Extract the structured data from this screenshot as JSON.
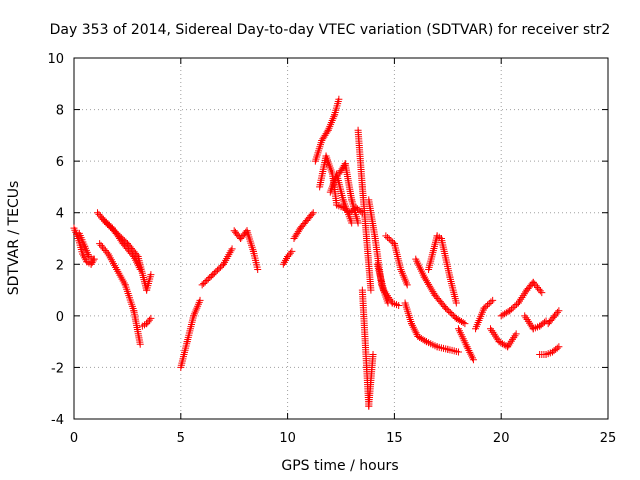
{
  "chart_data": {
    "type": "scatter",
    "title": "Day 353 of 2014, Sidereal Day-to-day VTEC variation (SDTVAR) for receiver str2",
    "xlabel": "GPS time / hours",
    "ylabel": "SDTVAR / TECUs",
    "xlim": [
      0,
      25
    ],
    "ylim": [
      -4,
      10
    ],
    "xticks": [
      0,
      5,
      10,
      15,
      20,
      25
    ],
    "yticks": [
      -4,
      -2,
      0,
      2,
      4,
      6,
      8,
      10
    ],
    "grid": true,
    "marker": "+",
    "marker_color": "#ff0000",
    "segments": [
      {
        "x": [
          0.0,
          0.2,
          0.4,
          0.6,
          0.8,
          0.95
        ],
        "y": [
          3.4,
          3.0,
          2.4,
          2.1,
          2.0,
          2.2
        ]
      },
      {
        "x": [
          0.25,
          0.5,
          0.7,
          0.9
        ],
        "y": [
          3.2,
          2.7,
          2.3,
          2.2
        ]
      },
      {
        "x": [
          1.1,
          1.5,
          2.0,
          2.5,
          3.0,
          3.4,
          3.6
        ],
        "y": [
          4.0,
          3.6,
          3.2,
          2.8,
          2.3,
          1.0,
          1.6
        ]
      },
      {
        "x": [
          1.2,
          1.6,
          2.0,
          2.4,
          2.8,
          3.1
        ],
        "y": [
          2.8,
          2.4,
          1.8,
          1.2,
          0.2,
          -1.1
        ]
      },
      {
        "x": [
          1.3,
          1.8,
          2.3,
          2.8,
          3.1
        ],
        "y": [
          3.8,
          3.4,
          2.8,
          2.3,
          1.8
        ]
      },
      {
        "x": [
          3.2,
          3.4,
          3.6
        ],
        "y": [
          -0.4,
          -0.3,
          -0.1
        ]
      },
      {
        "x": [
          5.0,
          5.3,
          5.6,
          5.9
        ],
        "y": [
          -2.0,
          -1.0,
          0.0,
          0.6
        ]
      },
      {
        "x": [
          6.0,
          6.5,
          7.0,
          7.4
        ],
        "y": [
          1.2,
          1.6,
          2.0,
          2.6
        ]
      },
      {
        "x": [
          7.5,
          7.8,
          8.1,
          8.4,
          8.6
        ],
        "y": [
          3.3,
          3.0,
          3.3,
          2.5,
          1.8
        ]
      },
      {
        "x": [
          9.8,
          10.0,
          10.2
        ],
        "y": [
          2.0,
          2.3,
          2.5
        ]
      },
      {
        "x": [
          10.3,
          10.6,
          10.9,
          11.2
        ],
        "y": [
          3.0,
          3.4,
          3.7,
          4.0
        ]
      },
      {
        "x": [
          11.3,
          11.6,
          11.9,
          12.2,
          12.4
        ],
        "y": [
          6.0,
          6.8,
          7.2,
          7.8,
          8.4
        ]
      },
      {
        "x": [
          11.5,
          11.8,
          12.1,
          12.3,
          12.6,
          12.9,
          13.2,
          13.5
        ],
        "y": [
          5.0,
          6.2,
          5.5,
          4.3,
          4.2,
          4.0,
          4.2,
          4.0
        ]
      },
      {
        "x": [
          12.0,
          12.3,
          12.6,
          13.0
        ],
        "y": [
          4.8,
          5.5,
          4.5,
          3.6
        ]
      },
      {
        "x": [
          12.4,
          12.7,
          13.0,
          13.3
        ],
        "y": [
          5.5,
          5.9,
          4.5,
          3.6
        ]
      },
      {
        "x": [
          13.3,
          13.5,
          13.7,
          13.9
        ],
        "y": [
          7.2,
          5.0,
          3.0,
          1.0
        ]
      },
      {
        "x": [
          13.5,
          13.7,
          13.8,
          14.0
        ],
        "y": [
          1.0,
          -2.0,
          -3.5,
          -1.5
        ]
      },
      {
        "x": [
          13.8,
          14.1,
          14.4,
          14.7
        ],
        "y": [
          4.5,
          3.0,
          1.2,
          0.5
        ]
      },
      {
        "x": [
          14.2,
          14.5,
          14.9,
          15.2
        ],
        "y": [
          2.0,
          1.0,
          0.5,
          0.4
        ]
      },
      {
        "x": [
          14.6,
          15.0,
          15.3,
          15.6
        ],
        "y": [
          3.1,
          2.8,
          1.8,
          1.2
        ]
      },
      {
        "x": [
          15.5,
          15.8,
          16.1,
          16.5,
          17.0,
          17.5,
          18.0
        ],
        "y": [
          0.5,
          -0.3,
          -0.8,
          -1.0,
          -1.2,
          -1.3,
          -1.4
        ]
      },
      {
        "x": [
          16.0,
          16.4,
          16.9,
          17.4,
          17.9,
          18.3
        ],
        "y": [
          2.2,
          1.5,
          0.8,
          0.3,
          -0.1,
          -0.3
        ]
      },
      {
        "x": [
          16.6,
          17.0,
          17.2,
          17.6,
          17.9
        ],
        "y": [
          1.8,
          3.1,
          3.0,
          1.5,
          0.5
        ]
      },
      {
        "x": [
          18.0,
          18.4,
          18.7
        ],
        "y": [
          -0.5,
          -1.2,
          -1.7
        ]
      },
      {
        "x": [
          18.8,
          19.2,
          19.6
        ],
        "y": [
          -0.5,
          0.3,
          0.6
        ]
      },
      {
        "x": [
          19.5,
          19.9,
          20.3,
          20.7
        ],
        "y": [
          -0.5,
          -1.0,
          -1.2,
          -0.7
        ]
      },
      {
        "x": [
          20.0,
          20.4,
          20.8,
          21.2,
          21.5,
          21.9
        ],
        "y": [
          0.0,
          0.2,
          0.5,
          1.0,
          1.3,
          0.9
        ]
      },
      {
        "x": [
          21.1,
          21.5,
          21.8,
          22.1
        ],
        "y": [
          0.0,
          -0.5,
          -0.4,
          -0.2
        ]
      },
      {
        "x": [
          21.8,
          22.1,
          22.4,
          22.7
        ],
        "y": [
          -1.5,
          -1.5,
          -1.4,
          -1.2
        ]
      },
      {
        "x": [
          22.2,
          22.5,
          22.7
        ],
        "y": [
          -0.3,
          0.0,
          0.2
        ]
      }
    ]
  }
}
